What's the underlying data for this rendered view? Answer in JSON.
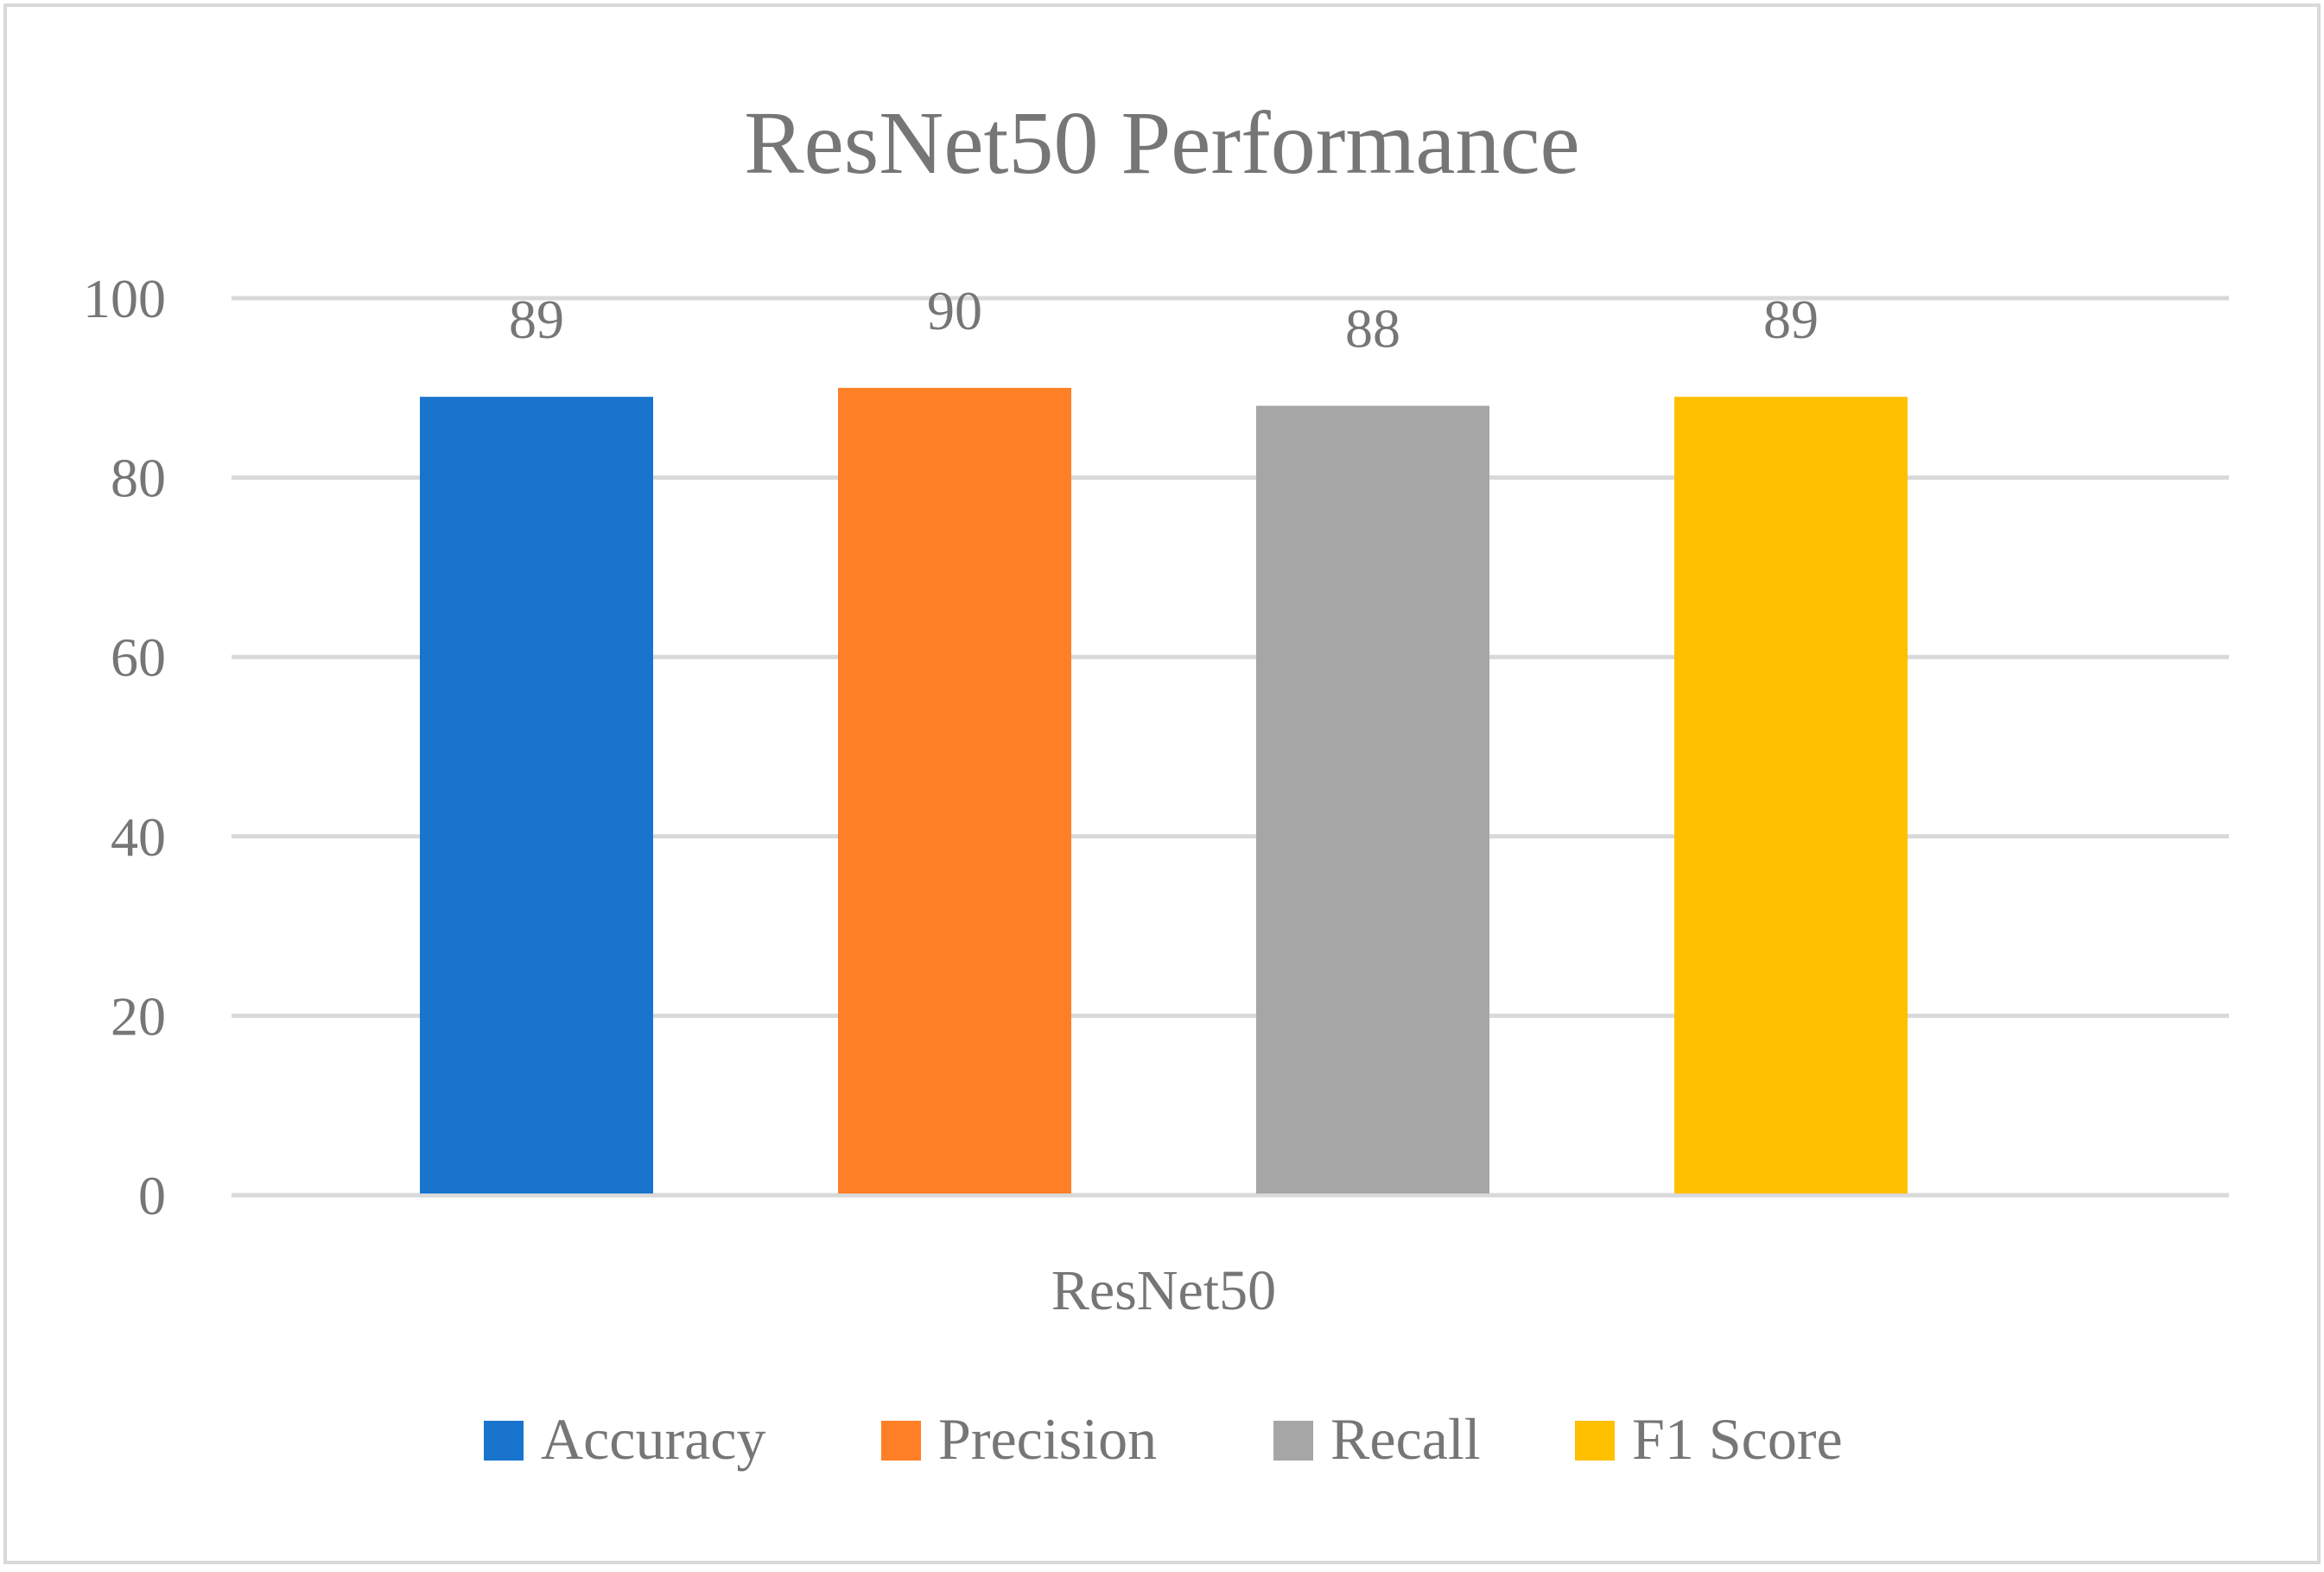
{
  "chart_data": {
    "type": "bar",
    "title": "ResNet50 Performance",
    "categories": [
      "ResNet50"
    ],
    "series": [
      {
        "name": "Accuracy",
        "values": [
          89
        ],
        "color": "#1874CD"
      },
      {
        "name": "Precision",
        "values": [
          90
        ],
        "color": "#FF7F27"
      },
      {
        "name": "Recall",
        "values": [
          88
        ],
        "color": "#A6A6A6"
      },
      {
        "name": "F1 Score",
        "values": [
          89
        ],
        "color": "#FFC000"
      }
    ],
    "yticks": [
      0,
      20,
      40,
      60,
      80,
      100
    ],
    "ylim": [
      0,
      100
    ],
    "grid": true,
    "legend_position": "bottom",
    "data_labels": true
  }
}
